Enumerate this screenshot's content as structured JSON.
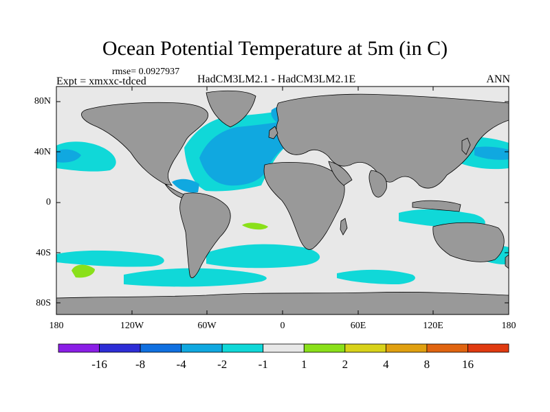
{
  "title": "Ocean Potential Temperature at 5m (in C)",
  "rmse_text": "rmse= 0.0927937",
  "expt_text": "Expt = xmxxc-tdced",
  "models_text": "HadCM3LM2.1 - HadCM3LM2.1E",
  "period": "ANN",
  "map": {
    "lat_ticks": [
      "80N",
      "40N",
      "0",
      "40S",
      "80S"
    ],
    "lon_ticks": [
      "180",
      "120W",
      "60W",
      "0",
      "60E",
      "120E",
      "180"
    ],
    "land_color": "#999999",
    "ocean_color": "#e8e8e8"
  },
  "colorbar": {
    "colors": [
      "#8a1ee6",
      "#2d2dd6",
      "#1070e0",
      "#10a8e0",
      "#10d8d8",
      "#e8e8e8",
      "#8ae01a",
      "#d8d21a",
      "#e0a010",
      "#e06410",
      "#e03a10"
    ],
    "labels": [
      "-16",
      "-8",
      "-4",
      "-2",
      "-1",
      "1",
      "2",
      "4",
      "8",
      "16"
    ]
  }
}
